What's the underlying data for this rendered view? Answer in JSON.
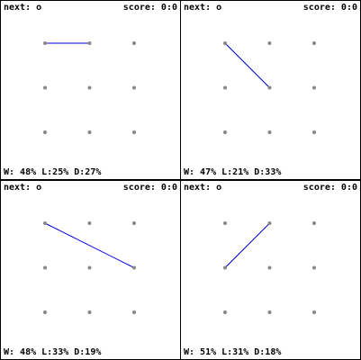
{
  "colors": {
    "dot": "#888888",
    "line": "#0000cc",
    "border": "#000000",
    "background": "#ffffff"
  },
  "grid": {
    "rows": 3,
    "cols": 3
  },
  "panels": [
    {
      "next": "next: o",
      "score": "score: 0:0",
      "stats": "W: 48% L:25% D:27%",
      "line": {
        "from": [
          0,
          0
        ],
        "to": [
          0,
          1
        ]
      }
    },
    {
      "next": "next: o",
      "score": "score: 0:0",
      "stats": "W: 47% L:21% D:33%",
      "line": {
        "from": [
          0,
          0
        ],
        "to": [
          1,
          1
        ]
      }
    },
    {
      "next": "next: o",
      "score": "score: 0:0",
      "stats": "W: 48% L:33% D:19%",
      "line": {
        "from": [
          0,
          0
        ],
        "to": [
          1,
          2
        ]
      }
    },
    {
      "next": "next: o",
      "score": "score: 0:0",
      "stats": "W: 51% L:31% D:18%",
      "line": {
        "from": [
          1,
          0
        ],
        "to": [
          0,
          1
        ]
      }
    }
  ]
}
